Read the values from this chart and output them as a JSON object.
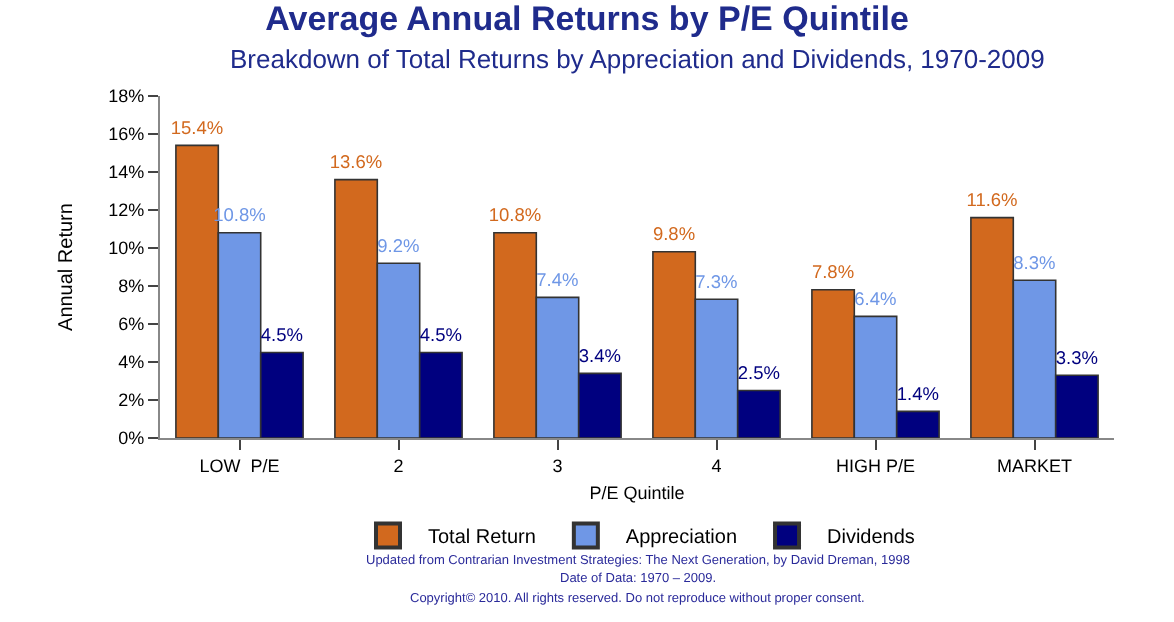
{
  "chart_data": {
    "type": "bar",
    "title": "Average Annual Returns by P/E Quintile",
    "subtitle": "Breakdown of Total Returns by Appreciation and Dividends, 1970-2009",
    "xlabel": "P/E Quintile",
    "ylabel": "Annual Return",
    "categories": [
      "LOW  P/E",
      "2",
      "3",
      "4",
      "HIGH P/E",
      "MARKET"
    ],
    "series": [
      {
        "name": "Total Return",
        "color": "#d2691e",
        "values": [
          15.4,
          13.6,
          10.8,
          9.8,
          7.8,
          11.6
        ],
        "value_labels": [
          "15.4%",
          "13.6%",
          "10.8%",
          "9.8%",
          "7.8%",
          "11.6%"
        ]
      },
      {
        "name": "Appreciation",
        "color": "#6f97e6",
        "values": [
          10.8,
          9.2,
          7.4,
          7.3,
          6.4,
          8.3
        ],
        "value_labels": [
          "10.8%",
          "9.2%",
          "7.4%",
          "7.3%",
          "6.4%",
          "8.3%"
        ]
      },
      {
        "name": "Dividends",
        "color": "#00007f",
        "values": [
          4.5,
          4.5,
          3.4,
          2.5,
          1.4,
          3.3
        ],
        "value_labels": [
          "4.5%",
          "4.5%",
          "3.4%",
          "2.5%",
          "1.4%",
          "3.3%"
        ]
      }
    ],
    "ylim": [
      0,
      18
    ],
    "yticks": [
      {
        "value": 0,
        "label": "0%"
      },
      {
        "value": 2,
        "label": "2%"
      },
      {
        "value": 4,
        "label": "4%"
      },
      {
        "value": 6,
        "label": "6%"
      },
      {
        "value": 8,
        "label": "8%"
      },
      {
        "value": 10,
        "label": "10%"
      },
      {
        "value": 12,
        "label": "12%"
      },
      {
        "value": 14,
        "label": "14%"
      },
      {
        "value": 16,
        "label": "16%"
      },
      {
        "value": 18,
        "label": "18%"
      }
    ],
    "grid": false,
    "legend": "bottom",
    "annotations": [
      "Updated from Contrarian Investment Strategies: The Next Generation, by David Dreman, 1998",
      "Date of Data: 1970 – 2009.",
      "Copyright© 2010. All rights reserved. Do not reproduce without proper consent."
    ]
  }
}
